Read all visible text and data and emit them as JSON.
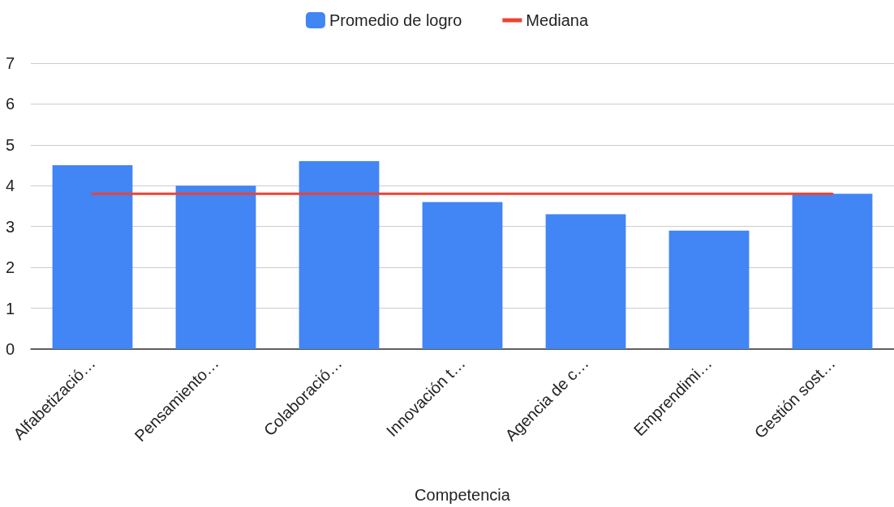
{
  "chart_data": {
    "type": "bar",
    "xlabel": "Competencia",
    "categories": [
      "Alfabetizació…",
      "Pensamiento…",
      "Colaboració…",
      "Innovación t…",
      "Agencia de c…",
      "Emprendimi…",
      "Gestión sost…"
    ],
    "series": [
      {
        "name": "Promedio de logro",
        "color": "#4285f4",
        "values": [
          4.5,
          4.0,
          4.6,
          3.6,
          3.3,
          2.9,
          3.8
        ]
      },
      {
        "name": "Mediana",
        "type": "line",
        "color": "#ea4335",
        "values": [
          3.8,
          3.8,
          3.8,
          3.8,
          3.8,
          3.8,
          3.8
        ]
      }
    ],
    "ylim": [
      0,
      7
    ],
    "yticks": [
      0,
      1,
      2,
      3,
      4,
      5,
      6,
      7
    ],
    "grid": "y",
    "legend": "top",
    "marker": "none"
  }
}
